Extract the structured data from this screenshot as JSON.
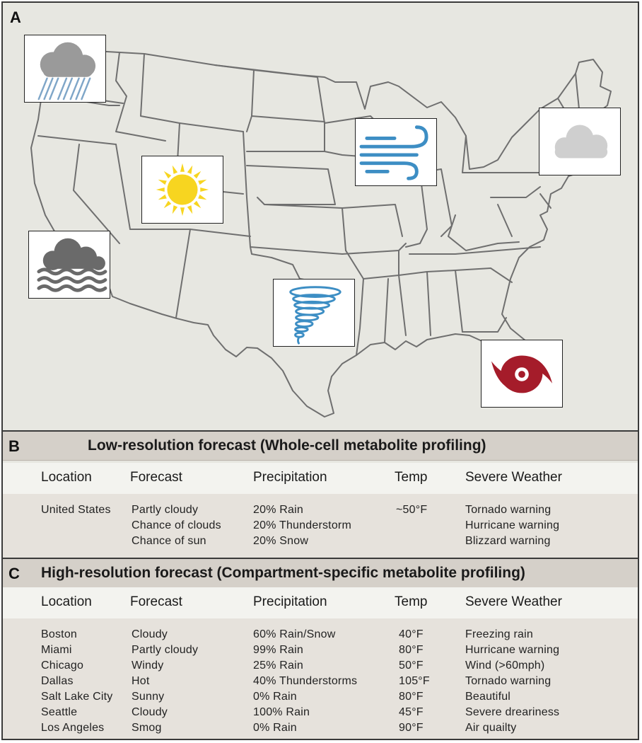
{
  "panels": {
    "a": {
      "letter": "A"
    },
    "b": {
      "letter": "B",
      "title": "Low-resolution forecast (Whole-cell metabolite profiling)",
      "headers": [
        "Location",
        "Forecast",
        "Precipitation",
        "Temp",
        "Severe Weather"
      ],
      "rows": [
        {
          "location": "United States",
          "forecast": "Partly cloudy",
          "precipitation": "20% Rain",
          "temp": "~50°F",
          "severe": "Tornado warning"
        },
        {
          "location": "",
          "forecast": "Chance of clouds",
          "precipitation": "20% Thunderstorm",
          "temp": "",
          "severe": "Hurricane warning"
        },
        {
          "location": "",
          "forecast": "Chance of sun",
          "precipitation": "20% Snow",
          "temp": "",
          "severe": "Blizzard warning"
        }
      ]
    },
    "c": {
      "letter": "C",
      "title": "High-resolution forecast (Compartment-specific metabolite profiling)",
      "headers": [
        "Location",
        "Forecast",
        "Precipitation",
        "Temp",
        "Severe Weather"
      ],
      "rows": [
        {
          "location": "Boston",
          "forecast": "Cloudy",
          "precipitation": "60% Rain/Snow",
          "temp": "40°F",
          "severe": "Freezing rain"
        },
        {
          "location": "Miami",
          "forecast": "Partly cloudy",
          "precipitation": "99% Rain",
          "temp": "80°F",
          "severe": "Hurricane warning"
        },
        {
          "location": "Chicago",
          "forecast": "Windy",
          "precipitation": "25% Rain",
          "temp": "50°F",
          "severe": "Wind (>60mph)"
        },
        {
          "location": "Dallas",
          "forecast": "Hot",
          "precipitation": "40% Thunderstorms",
          "temp": "105°F",
          "severe": "Tornado warning"
        },
        {
          "location": "Salt Lake City",
          "forecast": "Sunny",
          "precipitation": "0% Rain",
          "temp": "80°F",
          "severe": "Beautiful"
        },
        {
          "location": "Seattle",
          "forecast": "Cloudy",
          "precipitation": "100% Rain",
          "temp": "45°F",
          "severe": "Severe dreariness"
        },
        {
          "location": "Los Angeles",
          "forecast": "Smog",
          "precipitation": "0% Rain",
          "temp": "90°F",
          "severe": "Air quailty"
        }
      ]
    }
  },
  "map_icons": [
    {
      "name": "rain-cloud-icon",
      "city": "Seattle"
    },
    {
      "name": "sun-icon",
      "city": "Salt Lake City"
    },
    {
      "name": "smog-icon",
      "city": "Los Angeles"
    },
    {
      "name": "tornado-icon",
      "city": "Dallas"
    },
    {
      "name": "wind-icon",
      "city": "Chicago"
    },
    {
      "name": "cloud-icon",
      "city": "Boston"
    },
    {
      "name": "hurricane-icon",
      "city": "Miami"
    }
  ],
  "colors": {
    "map_background": "#e7e7e1",
    "state_lines": "#6f6f6f",
    "title_bar": "#d5d0c9",
    "header_row": "#f3f3ef",
    "body_rows": "#e6e2dc",
    "rain_cloud": "#9a9a9a",
    "rain_streaks": "#7fa6c8",
    "sun": "#f7d520",
    "smog": "#6a6a6a",
    "tornado": "#3d8ec4",
    "wind": "#3d8ec4",
    "cloud": "#cfcfcf",
    "hurricane": "#a51c2a"
  }
}
